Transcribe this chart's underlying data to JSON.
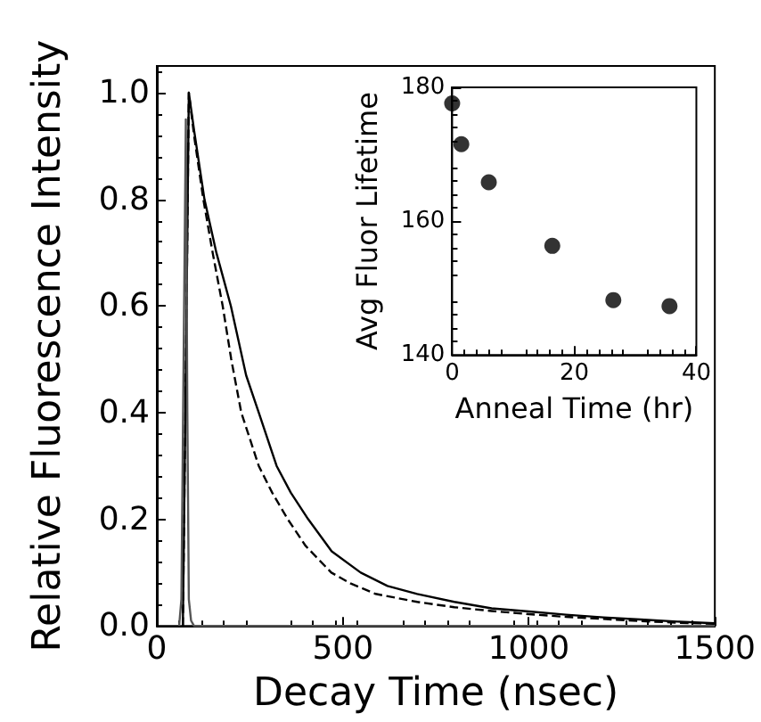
{
  "chart_data": [
    {
      "type": "line",
      "xlabel": "Decay Time (nsec)",
      "ylabel": "Relative Fluorescence Intensity",
      "xlim": [
        0,
        1500
      ],
      "ylim": [
        0,
        1.05
      ],
      "xticks": [
        0,
        500,
        1000,
        1500
      ],
      "yticks": [
        {
          "value": 0,
          "label": "0.0"
        },
        0.2,
        0.4,
        0.6,
        0.8,
        {
          "value": 1,
          "label": "1.0"
        }
      ],
      "marker": "none",
      "series": [
        {
          "color": "#000000",
          "line_style": "solid",
          "x": [
            70,
            80,
            86,
            100,
            128,
            160,
            199,
            240,
            274,
            322,
            360,
            407,
            470,
            548,
            620,
            700,
            800,
            900,
            1000,
            1100,
            1200,
            1300,
            1400,
            1500
          ],
          "values": [
            0,
            0.6,
            1,
            0.93,
            0.8,
            0.7,
            0.6,
            0.47,
            0.4,
            0.3,
            0.25,
            0.2,
            0.14,
            0.1,
            0.075,
            0.06,
            0.045,
            0.033,
            0.027,
            0.021,
            0.016,
            0.012,
            0.008,
            0.005
          ]
        },
        {
          "color": "#000000",
          "line_style": "dashed",
          "x": [
            70,
            80,
            86,
            100,
            125,
            150,
            177,
            200,
            227,
            274,
            310,
            352,
            400,
            469,
            520,
            588,
            700,
            800,
            900,
            1000,
            1100,
            1200,
            1300,
            1400,
            1500
          ],
          "values": [
            0,
            0.6,
            1,
            0.92,
            0.8,
            0.7,
            0.6,
            0.5,
            0.4,
            0.3,
            0.25,
            0.2,
            0.15,
            0.1,
            0.08,
            0.06,
            0.045,
            0.035,
            0.028,
            0.022,
            0.017,
            0.013,
            0.009,
            0.006,
            0.004
          ]
        },
        {
          "color": "#555555",
          "line_style": "solid",
          "x": [
            60,
            66,
            72,
            78,
            82,
            86,
            92,
            100,
            1500
          ],
          "values": [
            0,
            0.05,
            0.5,
            0.95,
            0.4,
            0.05,
            0.01,
            0,
            0
          ]
        }
      ]
    },
    {
      "type": "scatter",
      "xlabel": "Anneal Time (hr)",
      "ylabel": "Avg Fluor Lifetime",
      "xlim": [
        0,
        40
      ],
      "ylim": [
        140,
        180
      ],
      "xticks": [
        0,
        20,
        40
      ],
      "yticks": [
        140,
        160,
        180
      ],
      "marker": "circle",
      "series": [
        {
          "color": "#000000",
          "x": [
            0,
            1.5,
            6,
            16.4,
            26.4,
            35.6
          ],
          "values": [
            177.6,
            171.5,
            165.8,
            156.3,
            148.2,
            147.3
          ]
        }
      ]
    }
  ]
}
